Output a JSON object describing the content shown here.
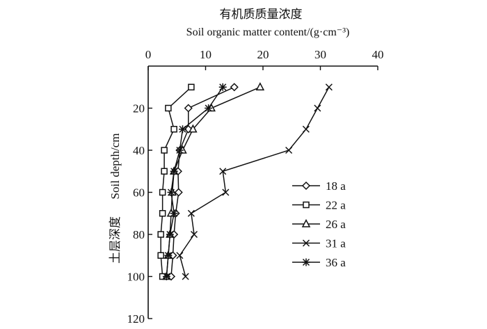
{
  "chart_data": {
    "type": "line",
    "title_cn": "有机质质量浓度",
    "title_en": "Soil organic matter content/(g·cm⁻³)",
    "xlabel_cn": "",
    "ylabel_cn": "土层深度",
    "ylabel_en": "Soil depth/cm",
    "x_axis_position": "top",
    "y_axis_inverted": true,
    "xlim": [
      0,
      40
    ],
    "ylim": [
      0,
      120
    ],
    "x_ticks": [
      "0",
      "10",
      "20",
      "30",
      "40"
    ],
    "y_ticks": [
      "20",
      "40",
      "60",
      "80",
      "100",
      "120"
    ],
    "legend_position": "right",
    "series": [
      {
        "name": "18 a",
        "marker": "diamond",
        "points": [
          [
            15.0,
            10
          ],
          [
            7.0,
            20
          ],
          [
            7.0,
            30
          ],
          [
            5.5,
            40
          ],
          [
            5.2,
            50
          ],
          [
            5.3,
            60
          ],
          [
            4.8,
            70
          ],
          [
            4.5,
            80
          ],
          [
            4.3,
            90
          ],
          [
            4.0,
            100
          ]
        ]
      },
      {
        "name": "22 a",
        "marker": "square",
        "points": [
          [
            7.5,
            10
          ],
          [
            3.5,
            20
          ],
          [
            4.5,
            30
          ],
          [
            2.8,
            40
          ],
          [
            2.8,
            50
          ],
          [
            2.5,
            60
          ],
          [
            2.5,
            70
          ],
          [
            2.2,
            80
          ],
          [
            2.2,
            90
          ],
          [
            2.5,
            100
          ]
        ]
      },
      {
        "name": "26 a",
        "marker": "triangle",
        "points": [
          [
            19.5,
            10
          ],
          [
            11.0,
            20
          ],
          [
            7.8,
            30
          ],
          [
            6.0,
            40
          ],
          [
            4.5,
            50
          ],
          [
            4.2,
            60
          ],
          [
            4.0,
            70
          ],
          [
            3.8,
            80
          ],
          [
            3.5,
            90
          ],
          [
            3.2,
            100
          ]
        ]
      },
      {
        "name": "31 a",
        "marker": "x",
        "points": [
          [
            31.5,
            10
          ],
          [
            29.5,
            20
          ],
          [
            27.5,
            30
          ],
          [
            24.5,
            40
          ],
          [
            13.0,
            50
          ],
          [
            13.5,
            60
          ],
          [
            7.5,
            70
          ],
          [
            8.0,
            80
          ],
          [
            5.5,
            90
          ],
          [
            6.5,
            100
          ]
        ]
      },
      {
        "name": "36 a",
        "marker": "asterisk",
        "points": [
          [
            13.0,
            10
          ],
          [
            10.5,
            20
          ],
          [
            6.0,
            30
          ],
          [
            5.5,
            40
          ],
          [
            4.5,
            50
          ],
          [
            4.0,
            60
          ],
          [
            4.5,
            70
          ],
          [
            3.8,
            80
          ],
          [
            3.5,
            90
          ],
          [
            3.2,
            100
          ]
        ]
      }
    ]
  }
}
